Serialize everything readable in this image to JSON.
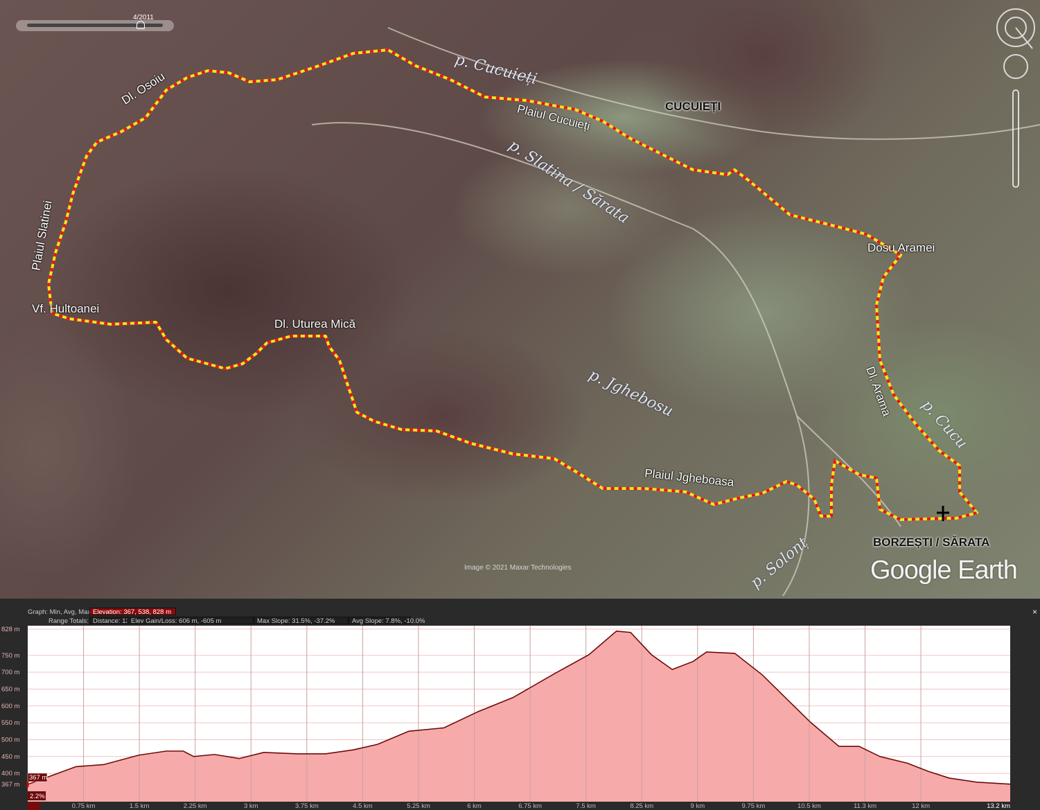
{
  "map": {
    "time_slider_label": "4/2011",
    "compass_label": "N",
    "labels": {
      "dl_osoiu": "Dl. Osoiu",
      "p_cucuieti": "p. Cucuieți",
      "plaiul_cucuieti": "Plaiul Cucuieți",
      "cucuieti": "CUCUIEȚI",
      "p_slatina": "p. Slatina / Sărata",
      "plaiul_slatinei": "Plaiul Slatinei",
      "dosu_aramei": "Dosu Aramei",
      "vf_hultoanei": "Vf. Hultoanei",
      "dl_uturea": "Dl. Uturea Mică",
      "p_jghebosu": "p. Jghebosu",
      "dl_arama": "Dl. Arama",
      "p_cucu": "p. Cucu",
      "plaiul_jgheboasa": "Plaiul Jgheboasa",
      "borzesti": "BORZEȘTI / SĂRATA",
      "p_solont": "p. Solonț"
    },
    "copyright": "Image © 2021 Maxar Technologies",
    "logo": "Google Earth",
    "route_colors": {
      "base": "#f2e41c",
      "dash": "#e8141c"
    }
  },
  "profile": {
    "graph_label": "Graph: Min, Avg, Max:",
    "elevation": "Elevation: 367, 538, 828 m",
    "range_label": "Range Totals:",
    "distance": "Distance: 13.2 km",
    "elev_gain_loss": "Elev Gain/Loss: 606 m, -605 m",
    "max_slope": "Max Slope: 31.5%, -37.2%",
    "avg_slope": "Avg Slope: 7.8%, -10.0%",
    "cursor_elevation": "367 m",
    "cursor_slope": "2.2%",
    "close": "×"
  },
  "chart_data": {
    "type": "area",
    "xlabel": "",
    "ylabel": "",
    "xlim": [
      0,
      13.2
    ],
    "ylim": [
      316,
      838
    ],
    "y_ticks": [
      {
        "v": 828,
        "label": "828 m"
      },
      {
        "v": 750,
        "label": "750 m"
      },
      {
        "v": 700,
        "label": "700 m"
      },
      {
        "v": 650,
        "label": "650 m"
      },
      {
        "v": 600,
        "label": "600 m"
      },
      {
        "v": 550,
        "label": "550 m"
      },
      {
        "v": 500,
        "label": "500 m"
      },
      {
        "v": 450,
        "label": "450 m"
      },
      {
        "v": 400,
        "label": "400 m"
      },
      {
        "v": 367,
        "label": "367 m"
      }
    ],
    "x_ticks": [
      {
        "v": 0,
        "label": "0 m"
      },
      {
        "v": 0.75,
        "label": "0.75 km"
      },
      {
        "v": 1.5,
        "label": "1.5 km"
      },
      {
        "v": 2.25,
        "label": "2.25 km"
      },
      {
        "v": 3,
        "label": "3 km"
      },
      {
        "v": 3.75,
        "label": "3.75 km"
      },
      {
        "v": 4.5,
        "label": "4.5 km"
      },
      {
        "v": 5.25,
        "label": "5.25 km"
      },
      {
        "v": 6,
        "label": "6 km"
      },
      {
        "v": 6.75,
        "label": "6.75 km"
      },
      {
        "v": 7.5,
        "label": "7.5 km"
      },
      {
        "v": 8.25,
        "label": "8.25 km"
      },
      {
        "v": 9,
        "label": "9 km"
      },
      {
        "v": 9.75,
        "label": "9.75 km"
      },
      {
        "v": 10.5,
        "label": "10.5 km"
      },
      {
        "v": 11.25,
        "label": "11.3 km"
      },
      {
        "v": 12,
        "label": "12 km"
      },
      {
        "v": 13.2,
        "label": "13.2 km"
      }
    ],
    "series": [
      {
        "x": [
          0,
          0.28,
          0.65,
          1.02,
          1.49,
          1.86,
          2.09,
          2.23,
          2.51,
          2.84,
          3.17,
          3.63,
          4.0,
          4.38,
          4.7,
          5.12,
          5.59,
          6.05,
          6.52,
          7.08,
          7.54,
          7.91,
          8.1,
          8.38,
          8.66,
          8.94,
          9.12,
          9.5,
          9.87,
          10.15,
          10.52,
          10.9,
          11.17,
          11.45,
          11.82,
          12.1,
          12.38,
          12.75,
          13.2
        ],
        "y": [
          367,
          390,
          420,
          426,
          454,
          466,
          466,
          450,
          456,
          444,
          462,
          458,
          458,
          470,
          486,
          525,
          535,
          583,
          625,
          696,
          752,
          822,
          818,
          752,
          708,
          732,
          760,
          756,
          692,
          631,
          551,
          480,
          480,
          450,
          430,
          406,
          386,
          374,
          368
        ]
      }
    ],
    "colors": {
      "fill": "#f7aaaa",
      "line": "#6e0a0a",
      "grid": "#f0c4c4"
    }
  }
}
